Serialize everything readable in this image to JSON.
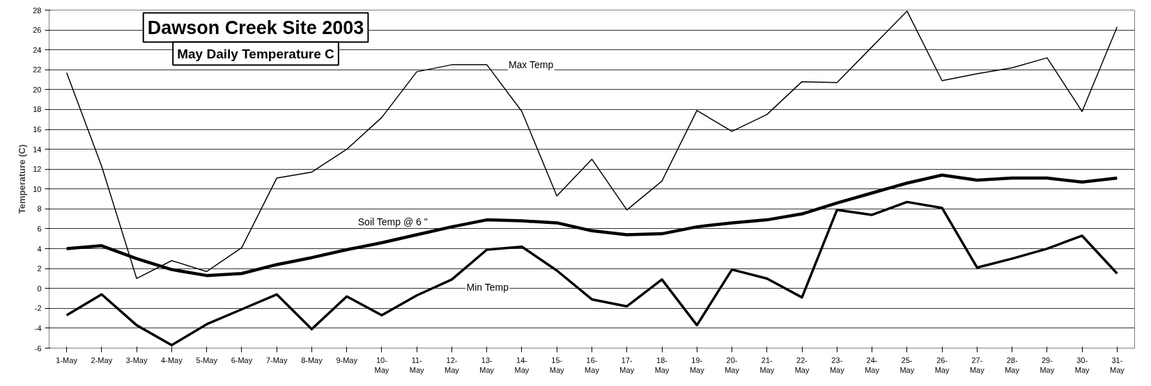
{
  "chart_data": {
    "type": "line",
    "title": "Dawson Creek Site 2003",
    "subtitle": "May Daily Temperature C",
    "ylabel": "Temperature (C)",
    "categories": [
      "1-May",
      "2-May",
      "3-May",
      "4-May",
      "5-May",
      "6-May",
      "7-May",
      "8-May",
      "9-May",
      "10-May",
      "11-May",
      "12-May",
      "13-May",
      "14-May",
      "15-May",
      "16-May",
      "17-May",
      "18-May",
      "19-May",
      "20-May",
      "21-May",
      "22-May",
      "23-May",
      "24-May",
      "25-May",
      "26-May",
      "27-May",
      "28-May",
      "29-May",
      "30-May",
      "31-May"
    ],
    "series": [
      {
        "name": "Max Temp",
        "color": "#000000",
        "values": [
          21.7,
          12.3,
          1.0,
          2.8,
          1.7,
          4.1,
          11.1,
          11.7,
          14.0,
          17.2,
          21.8,
          22.5,
          22.5,
          17.8,
          9.3,
          13.0,
          7.9,
          10.8,
          17.9,
          15.8,
          17.5,
          20.8,
          20.7,
          24.3,
          27.9,
          20.9,
          21.6,
          22.2,
          23.2,
          17.8,
          26.3
        ]
      },
      {
        "name": "Soil Temp @ 6 \"",
        "color": "#000000",
        "values": [
          4.0,
          4.3,
          3.0,
          1.9,
          1.3,
          1.5,
          2.4,
          3.1,
          3.9,
          4.6,
          5.4,
          6.2,
          6.9,
          6.8,
          6.6,
          5.8,
          5.4,
          5.5,
          6.2,
          6.6,
          6.9,
          7.5,
          8.6,
          9.6,
          10.6,
          11.4,
          10.9,
          11.1,
          11.1,
          10.7,
          11.1
        ]
      },
      {
        "name": "Min Temp",
        "color": "#000000",
        "values": [
          -2.7,
          -0.6,
          -3.7,
          -5.7,
          -3.6,
          -2.1,
          -0.6,
          -4.1,
          -0.8,
          -2.7,
          -0.7,
          0.9,
          3.9,
          4.2,
          1.8,
          -1.1,
          -1.8,
          0.9,
          -3.7,
          1.9,
          1.0,
          -0.9,
          7.9,
          7.4,
          8.7,
          8.1,
          2.1,
          3.0,
          4.0,
          5.3,
          1.5
        ]
      }
    ],
    "ylim": [
      -6,
      28
    ],
    "yticks": [
      -6,
      -4,
      -2,
      0,
      2,
      4,
      6,
      8,
      10,
      12,
      14,
      16,
      18,
      20,
      22,
      24,
      26,
      28
    ],
    "grid": "y",
    "marker": "none",
    "line_style": "solid"
  }
}
